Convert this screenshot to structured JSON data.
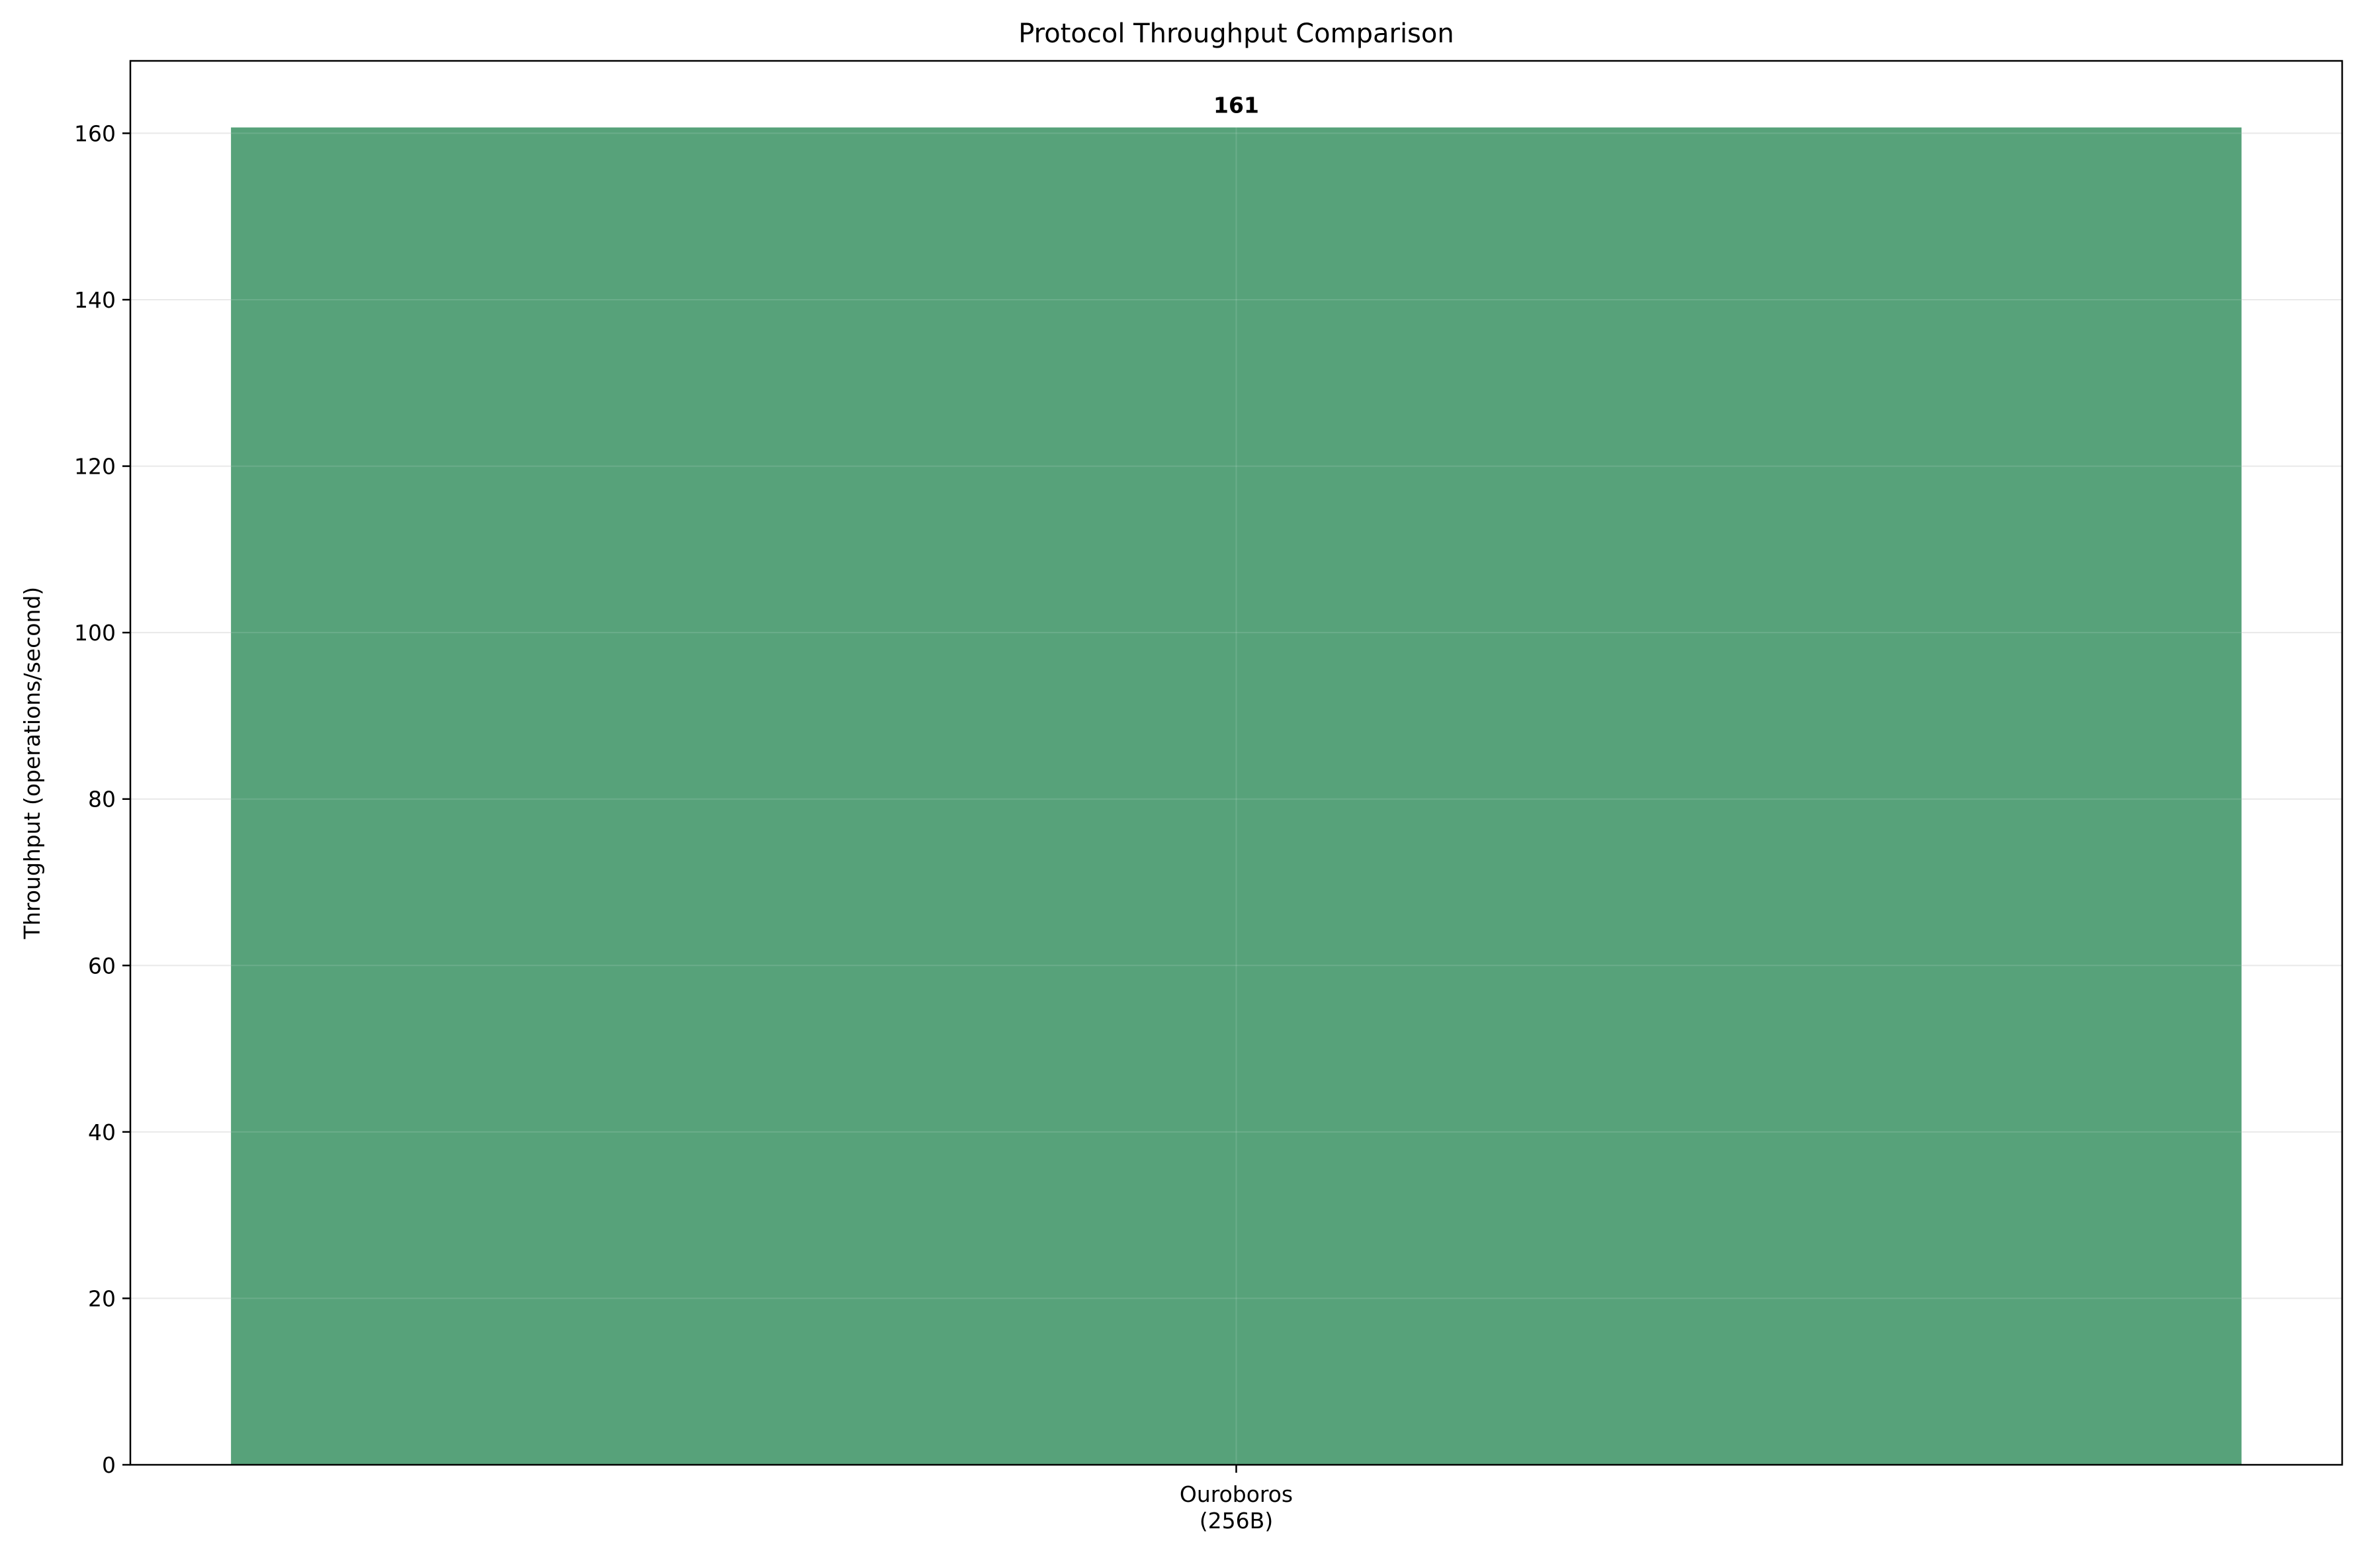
{
  "chart_data": {
    "type": "bar",
    "title": "Protocol Throughput Comparison",
    "xlabel": "",
    "ylabel": "Throughput (operations/second)",
    "categories": [
      [
        "Ouroboros",
        "(256B)"
      ]
    ],
    "values": [
      160.7
    ],
    "data_labels": [
      "161"
    ],
    "ylim": [
      0,
      168.7
    ],
    "yticks": [
      0,
      20,
      40,
      60,
      80,
      100,
      120,
      140,
      160
    ],
    "grid": true,
    "legend": "none",
    "colors": {
      "bar": "#57a27a",
      "grid": "#e6e6e6",
      "axis": "#000000",
      "background": "#ffffff"
    }
  }
}
